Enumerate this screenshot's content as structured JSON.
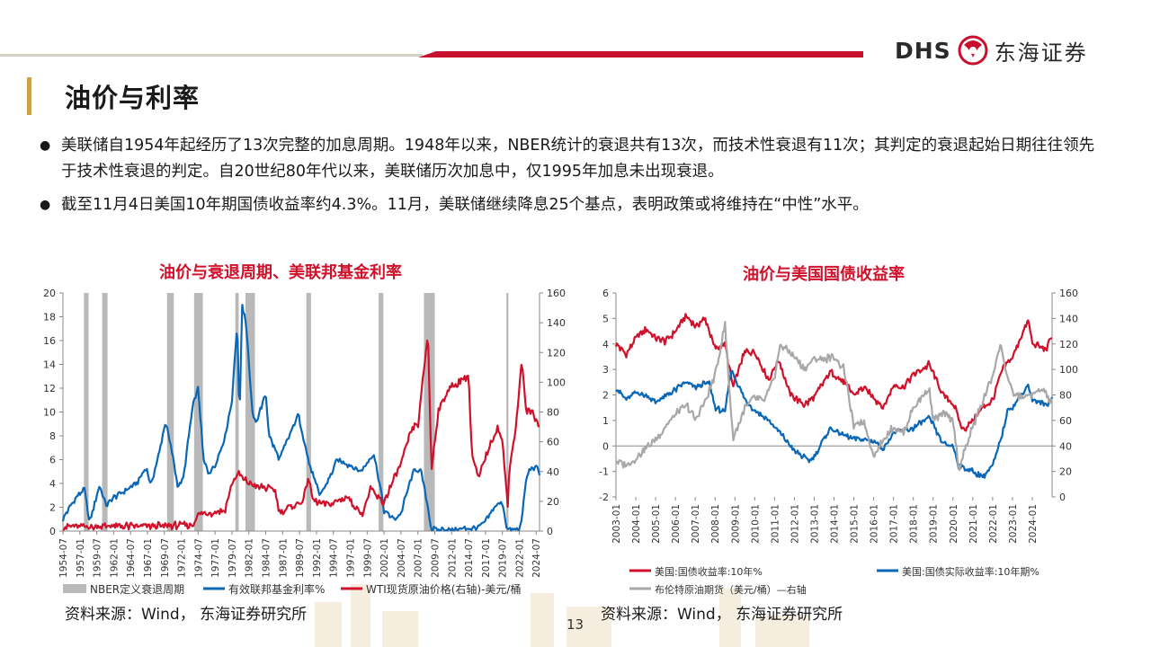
{
  "header": {
    "logo_en": "DHS",
    "logo_cn": "东海证券",
    "title": "油价与利率"
  },
  "bullets": [
    "美联储自1954年起经历了13次完整的加息周期。1948年以来，NBER统计的衰退共有13次，而技术性衰退有11次；其判定的衰退起始日期往往领先于技术性衰退的判定。自20世纪80年代以来，美联储历次加息中，仅1995年加息未出现衰退。",
    "截至11月4日美国10年期国债收益率约4.3%。11月，美联储继续降息25个基点，表明政策或将维持在“中性”水平。"
  ],
  "page_number": "13",
  "colors": {
    "red": "#d0112b",
    "blue": "#0a67b5",
    "grey": "#a8a8a8",
    "recession": "#b9b9b9"
  },
  "chart_data": [
    {
      "type": "line",
      "title": "油价与衰退周期、美联邦基金利率",
      "source": "资料来源：Wind， 东海证券研究所",
      "x_tick_labels": [
        "1954-07",
        "1957-01",
        "1959-07",
        "1962-01",
        "1964-07",
        "1967-01",
        "1969-07",
        "1972-01",
        "1974-07",
        "1977-01",
        "1979-07",
        "1982-01",
        "1984-07",
        "1987-01",
        "1989-07",
        "1992-01",
        "1994-07",
        "1997-01",
        "1999-07",
        "2002-01",
        "2004-07",
        "2007-01",
        "2009-07",
        "2012-01",
        "2014-07",
        "2017-01",
        "2019-07",
        "2022-01",
        "2024-07"
      ],
      "xlim": [
        1954.5,
        2025.0
      ],
      "y_left": {
        "lim": [
          0,
          20
        ],
        "ticks": [
          "0",
          "2",
          "4",
          "6",
          "8",
          "10",
          "12",
          "14",
          "16",
          "18",
          "20"
        ]
      },
      "y_right": {
        "lim": [
          0,
          160
        ],
        "ticks": [
          "0",
          "20",
          "40",
          "60",
          "80",
          "100",
          "120",
          "140",
          "160"
        ]
      },
      "recessions": [
        [
          1957.6,
          1958.3
        ],
        [
          1960.3,
          1961.1
        ],
        [
          1969.9,
          1970.9
        ],
        [
          1973.9,
          1975.2
        ],
        [
          1980.0,
          1980.5
        ],
        [
          1981.5,
          1982.9
        ],
        [
          1990.5,
          1991.2
        ],
        [
          2001.2,
          2001.9
        ],
        [
          2007.9,
          2009.5
        ],
        [
          2020.1,
          2020.4
        ]
      ],
      "series": [
        {
          "name": "有效联邦基金利率%",
          "axis": "left",
          "x": [
            1954.5,
            1955.5,
            1956.5,
            1957.7,
            1958.4,
            1959.9,
            1960.9,
            1962,
            1964,
            1965.5,
            1966.8,
            1967.5,
            1968.5,
            1969.7,
            1970.9,
            1971.5,
            1972.3,
            1973.7,
            1974.5,
            1975.3,
            1976,
            1977,
            1978.5,
            1979.5,
            1980.3,
            1980.6,
            1981,
            1981.6,
            1982.5,
            1983,
            1984.5,
            1985,
            1986.5,
            1987,
            1988,
            1989.3,
            1990,
            1991,
            1992.5,
            1994,
            1995,
            1997,
            1998.5,
            2000.5,
            2001.5,
            2002,
            2003.5,
            2004.5,
            2005.5,
            2006.5,
            2007.5,
            2008.5,
            2009,
            2012,
            2015.9,
            2016.5,
            2017.5,
            2018.5,
            2019.5,
            2020.2,
            2021,
            2022,
            2022.5,
            2023,
            2023.6,
            2024.7,
            2025
          ],
          "y": [
            1.0,
            2.0,
            2.9,
            3.5,
            0.7,
            3.8,
            2.1,
            2.8,
            3.5,
            4.1,
            5.3,
            3.9,
            6.0,
            9.2,
            5.8,
            3.7,
            4.4,
            10.5,
            12.0,
            6.0,
            4.9,
            5.5,
            8.0,
            11.0,
            17.6,
            9.0,
            19.0,
            17.5,
            10.0,
            9.0,
            11.5,
            8.0,
            6.0,
            6.7,
            8.0,
            9.8,
            8.0,
            5.5,
            3.0,
            4.5,
            6.0,
            5.5,
            5.0,
            6.5,
            3.5,
            1.7,
            1.0,
            1.5,
            3.5,
            5.2,
            5.0,
            2.0,
            0.15,
            0.1,
            0.3,
            0.5,
            1.2,
            2.2,
            2.4,
            0.1,
            0.08,
            0.1,
            1.5,
            4.3,
            5.3,
            5.3,
            4.8
          ]
        },
        {
          "name": "WTI现货原油价格(右轴)-美元/桶",
          "axis": "right",
          "x": [
            1954.5,
            1970,
            1973.8,
            1974.2,
            1978.5,
            1979.5,
            1980.5,
            1981,
            1983,
            1985.8,
            1986.5,
            1988,
            1990,
            1990.8,
            1991.5,
            1994,
            1996.5,
            1998.8,
            2000,
            2001.9,
            2003,
            2004.5,
            2005.5,
            2006.5,
            2007,
            2008.5,
            2009,
            2010,
            2011.5,
            2013,
            2014.5,
            2015,
            2016,
            2017,
            2018.8,
            2019.5,
            2020.3,
            2020.5,
            2021.5,
            2022.4,
            2023,
            2024,
            2025
          ],
          "y": [
            3,
            3.4,
            4.3,
            10.5,
            14,
            32,
            39,
            35,
            30,
            28,
            13,
            16,
            20,
            36,
            20,
            18,
            23,
            11,
            28,
            19,
            30,
            45,
            60,
            72,
            70,
            134,
            40,
            80,
            95,
            100,
            105,
            50,
            35,
            50,
            70,
            60,
            18,
            40,
            70,
            115,
            80,
            80,
            70
          ]
        }
      ],
      "legend": [
        "NBER定义衰退周期",
        "有效联邦基金利率%",
        "WTI现货原油价格(右轴)-美元/桶"
      ]
    },
    {
      "type": "line",
      "title": "油价与美国国债收益率",
      "source": "资料来源：Wind， 东海证券研究所",
      "x_tick_labels": [
        "2003-01",
        "2004-01",
        "2005-01",
        "2006-01",
        "2007-01",
        "2008-01",
        "2009-01",
        "2010-01",
        "2011-01",
        "2012-01",
        "2013-01",
        "2014-01",
        "2015-01",
        "2016-01",
        "2017-01",
        "2018-01",
        "2019-01",
        "2020-01",
        "2021-01",
        "2022-01",
        "2023-01",
        "2024-01"
      ],
      "xlim": [
        2003.0,
        2025.0
      ],
      "y_left": {
        "lim": [
          -2,
          6
        ],
        "ticks": [
          "-2",
          "-1",
          "0",
          "1",
          "2",
          "3",
          "4",
          "5",
          "6"
        ]
      },
      "y_right": {
        "lim": [
          0,
          160
        ],
        "ticks": [
          "0",
          "20",
          "40",
          "60",
          "80",
          "100",
          "120",
          "140",
          "160"
        ]
      },
      "series": [
        {
          "name": "美国:国债收益率:10年%",
          "axis": "left",
          "x": [
            2003,
            2003.5,
            2004,
            2004.5,
            2005,
            2005.5,
            2006,
            2006.5,
            2007,
            2007.5,
            2008,
            2008.5,
            2008.9,
            2009.5,
            2010,
            2010.7,
            2011.2,
            2011.8,
            2012.5,
            2013,
            2013.8,
            2014.5,
            2015,
            2015.5,
            2016.5,
            2017,
            2017.5,
            2018,
            2018.8,
            2019.5,
            2020,
            2020.5,
            2021,
            2021.5,
            2022,
            2022.5,
            2023,
            2023.8,
            2024,
            2024.7,
            2025
          ],
          "y": [
            4.0,
            3.6,
            4.2,
            4.6,
            4.2,
            4.1,
            4.5,
            5.1,
            4.7,
            5.0,
            3.8,
            4.0,
            2.3,
            3.7,
            3.7,
            2.6,
            3.4,
            2.0,
            1.6,
            1.9,
            2.9,
            2.5,
            2.0,
            2.3,
            1.5,
            2.4,
            2.3,
            2.8,
            3.2,
            2.0,
            1.7,
            0.6,
            1.0,
            1.5,
            1.8,
            3.0,
            3.5,
            4.9,
            4.0,
            3.8,
            4.3
          ]
        },
        {
          "name": "美国:国债实际收益率:10年期%",
          "axis": "left",
          "x": [
            2003,
            2003.5,
            2004,
            2004.5,
            2005,
            2006,
            2006.5,
            2007,
            2007.7,
            2008,
            2008.5,
            2008.8,
            2009,
            2009.5,
            2010,
            2010.7,
            2011.5,
            2012,
            2012.8,
            2013,
            2013.8,
            2014.5,
            2015,
            2016,
            2016.5,
            2017,
            2018,
            2018.8,
            2019.5,
            2020,
            2020.3,
            2021,
            2021.5,
            2022,
            2022.4,
            2022.8,
            2023,
            2023.8,
            2024,
            2024.7,
            2025
          ],
          "y": [
            2.3,
            1.8,
            2.1,
            2.0,
            1.7,
            2.2,
            2.5,
            2.3,
            2.5,
            1.5,
            1.3,
            3.0,
            2.7,
            1.8,
            1.4,
            1.0,
            0.3,
            -0.2,
            -0.6,
            -0.4,
            0.7,
            0.4,
            0.3,
            0.2,
            -0.1,
            0.5,
            0.7,
            1.1,
            0.1,
            0.0,
            -0.8,
            -1.0,
            -1.2,
            -0.8,
            0.2,
            1.5,
            1.5,
            2.4,
            1.8,
            1.6,
            1.9
          ]
        },
        {
          "name": "布伦特原油期货（美元/桶）—右轴",
          "axis": "right",
          "x": [
            2003,
            2003.6,
            2004,
            2004.6,
            2005,
            2005.5,
            2006,
            2006.6,
            2007,
            2007.5,
            2008,
            2008.5,
            2008.9,
            2009.5,
            2010,
            2010.5,
            2011,
            2011.3,
            2012,
            2012.5,
            2013,
            2013.5,
            2014,
            2014.5,
            2015,
            2015.5,
            2016,
            2016.5,
            2017,
            2017.5,
            2018,
            2018.8,
            2019,
            2019.5,
            2020,
            2020.3,
            2021,
            2021.5,
            2022,
            2022.4,
            2022.8,
            2023,
            2023.5,
            2024,
            2024.5,
            2025
          ],
          "y": [
            28,
            25,
            30,
            40,
            45,
            55,
            65,
            72,
            60,
            75,
            95,
            135,
            45,
            70,
            78,
            75,
            95,
            120,
            110,
            100,
            108,
            108,
            110,
            100,
            55,
            60,
            32,
            45,
            55,
            50,
            70,
            85,
            60,
            65,
            60,
            22,
            55,
            75,
            95,
            120,
            90,
            82,
            78,
            80,
            85,
            73
          ]
        }
      ],
      "legend": [
        "美国:国债收益率:10年%",
        "美国:国债实际收益率:10年期%",
        "布伦特原油期货（美元/桶）—右轴"
      ]
    }
  ]
}
